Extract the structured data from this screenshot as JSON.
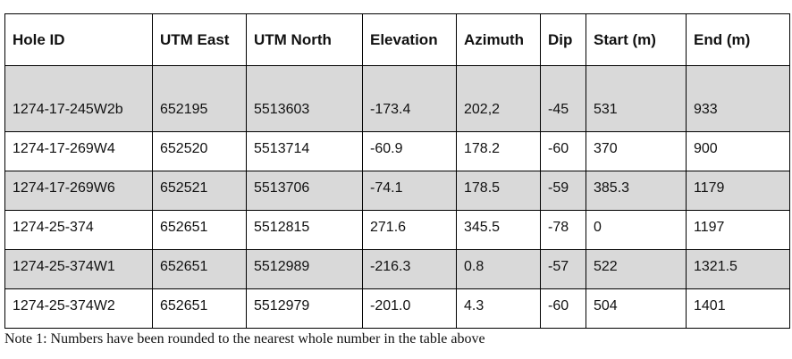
{
  "table": {
    "columns": [
      "Hole ID",
      "UTM East",
      "UTM North",
      "Elevation",
      "Azimuth",
      "Dip",
      "Start (m)",
      "End (m)"
    ],
    "rows": [
      [
        "1274-17-245W2b",
        "652195",
        "5513603",
        "-173.4",
        "202,2",
        "-45",
        "531",
        "933"
      ],
      [
        "1274-17-269W4",
        "652520",
        "5513714",
        "-60.9",
        "178.2",
        "-60",
        "370",
        "900"
      ],
      [
        "1274-17-269W6",
        "652521",
        "5513706",
        "-74.1",
        "178.5",
        "-59",
        "385.3",
        "1179"
      ],
      [
        "1274-25-374",
        "652651",
        "5512815",
        "271.6",
        "345.5",
        "-78",
        "0",
        "1197"
      ],
      [
        "1274-25-374W1",
        "652651",
        "5512989",
        "-216.3",
        "0.8",
        "-57",
        "522",
        "1321.5"
      ],
      [
        "1274-25-374W2",
        "652651",
        "5512979",
        "-201.0",
        "4.3",
        "-60",
        "504",
        "1401"
      ]
    ]
  },
  "note": "Note 1: Numbers have been rounded to the nearest whole number in the table above"
}
